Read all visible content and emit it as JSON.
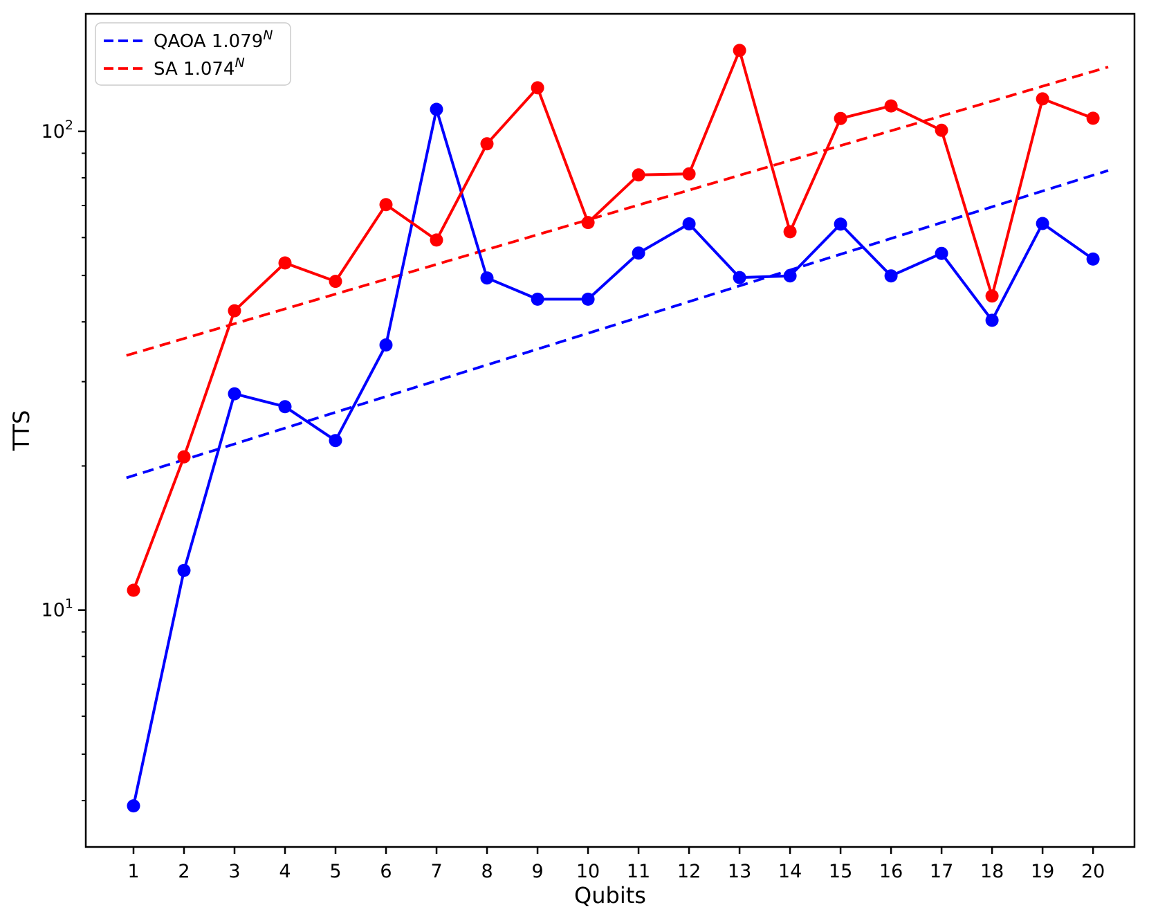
{
  "chart_data": {
    "type": "line",
    "title": "",
    "xlabel": "Qubits",
    "ylabel": "TTS",
    "yscale": "log",
    "grid": false,
    "legend_position": "upper-left",
    "xlim": [
      0.055,
      20.82
    ],
    "ylim": [
      3.2,
      176
    ],
    "x": [
      1,
      2,
      3,
      4,
      5,
      6,
      7,
      8,
      9,
      10,
      11,
      12,
      13,
      14,
      15,
      16,
      17,
      18,
      19,
      20
    ],
    "x_tick_labels": [
      "1",
      "2",
      "3",
      "4",
      "5",
      "6",
      "7",
      "8",
      "9",
      "10",
      "11",
      "12",
      "13",
      "14",
      "15",
      "16",
      "17",
      "18",
      "19",
      "20"
    ],
    "y_major_ticks": [
      {
        "value": 10,
        "label_base": "10",
        "label_exp": "1"
      },
      {
        "value": 100,
        "label_base": "10",
        "label_exp": "2"
      }
    ],
    "y_minor_ticks": [
      4,
      5,
      6,
      7,
      8,
      9,
      20,
      30,
      40,
      50,
      60,
      70,
      80,
      90
    ],
    "series": [
      {
        "name": "QAOA",
        "color": "#0000ff",
        "marker": "circle",
        "values": [
          3.9,
          12.1,
          28.3,
          26.6,
          22.6,
          35.8,
          111.2,
          49.4,
          44.6,
          44.6,
          55.7,
          64.1,
          49.5,
          49.9,
          64.0,
          49.9,
          55.6,
          40.3,
          64.2,
          54.1
        ]
      },
      {
        "name": "SA",
        "color": "#ff0000",
        "marker": "circle",
        "values": [
          11.0,
          20.9,
          42.2,
          53.1,
          48.6,
          70.3,
          59.3,
          94.2,
          123.3,
          64.5,
          81.1,
          81.5,
          147.6,
          61.7,
          106.4,
          113.0,
          100.5,
          45.3,
          116.9,
          106.5
        ]
      }
    ],
    "fits": [
      {
        "name": "QAOA fit",
        "legend_base": "QAOA 1.079",
        "legend_exp": "N",
        "color": "#0000ff",
        "coeff": 17.7,
        "base": 1.079,
        "x_range": [
          0.86,
          20.3
        ]
      },
      {
        "name": "SA fit",
        "legend_base": "SA 1.074",
        "legend_exp": "N",
        "color": "#ff0000",
        "coeff": 32.0,
        "base": 1.074,
        "x_range": [
          0.86,
          20.3
        ]
      }
    ],
    "colors": {
      "qaoa": "#0000ff",
      "sa": "#ff0000",
      "spine": "#000000",
      "legend_border": "#cccccc"
    }
  }
}
